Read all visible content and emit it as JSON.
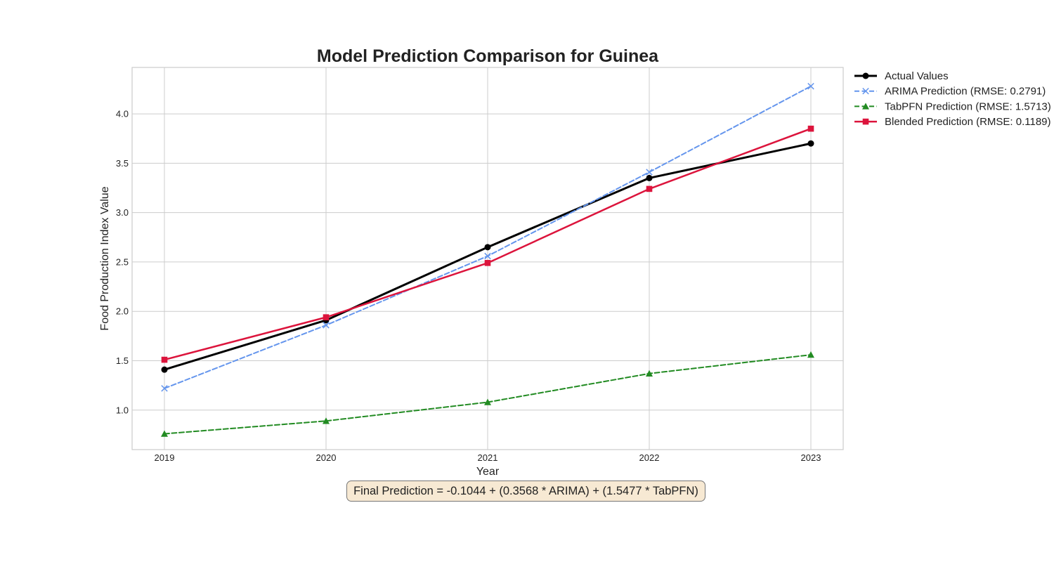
{
  "chart_data": {
    "type": "line",
    "title": "Model Prediction Comparison for Guinea",
    "xlabel": "Year",
    "ylabel": "Food Production Index Value",
    "x": [
      2019,
      2020,
      2021,
      2022,
      2023
    ],
    "xticks": [
      "2019",
      "2020",
      "2021",
      "2022",
      "2023"
    ],
    "yticks": [
      1.0,
      1.5,
      2.0,
      2.5,
      3.0,
      3.5,
      4.0
    ],
    "ytick_labels": [
      "1.0",
      "1.5",
      "2.0",
      "2.5",
      "3.0",
      "3.5",
      "4.0"
    ],
    "xlim": [
      2018.8,
      2023.2
    ],
    "ylim": [
      0.6,
      4.47
    ],
    "grid": true,
    "legend_position": "outside-top-right",
    "series": [
      {
        "name": "Actual Values",
        "values": [
          1.41,
          1.91,
          2.65,
          3.35,
          3.7
        ],
        "color": "#000000",
        "marker": "circle",
        "dash": "solid"
      },
      {
        "name": "ARIMA Prediction (RMSE: 0.2791)",
        "values": [
          1.22,
          1.86,
          2.56,
          3.41,
          4.28
        ],
        "color": "#6495ed",
        "marker": "x",
        "dash": "dashed"
      },
      {
        "name": "TabPFN Prediction (RMSE: 1.5713)",
        "values": [
          0.76,
          0.89,
          1.08,
          1.37,
          1.56
        ],
        "color": "#228b22",
        "marker": "triangle",
        "dash": "dashed"
      },
      {
        "name": "Blended Prediction (RMSE: 0.1189)",
        "values": [
          1.51,
          1.94,
          2.49,
          3.24,
          3.85
        ],
        "color": "#dc143c",
        "marker": "square",
        "dash": "solid"
      }
    ],
    "annotation": "Final Prediction = -0.1044 + (0.3568 * ARIMA) + (1.5477 * TabPFN)"
  }
}
